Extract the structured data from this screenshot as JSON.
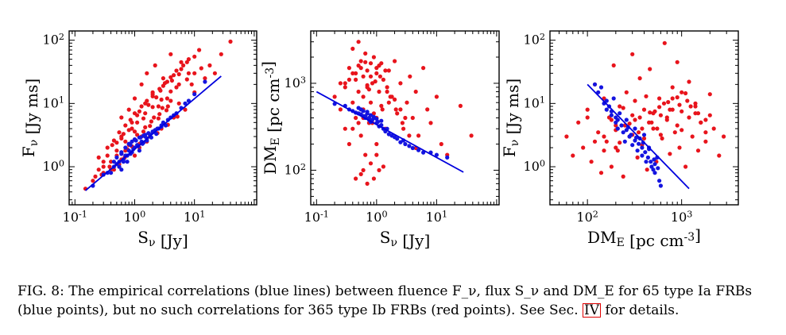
{
  "chart_data": [
    {
      "type": "scatter",
      "xlabel": "S_ν [Jy]",
      "ylabel": "F_ν [Jy ms]",
      "xscale": "log",
      "yscale": "log",
      "xlim": [
        0.08,
        110
      ],
      "ylim": [
        0.25,
        140
      ],
      "x_ticks": [
        "10^-1",
        "10^0",
        "10^1"
      ],
      "y_ticks": [
        "10^0",
        "10^1",
        "10^2"
      ],
      "series": [
        {
          "name": "type Ib",
          "color": "#e8141c",
          "x": [
            0.15,
            0.22,
            0.25,
            0.3,
            0.3,
            0.35,
            0.4,
            0.42,
            0.5,
            0.55,
            0.6,
            0.6,
            0.7,
            0.8,
            0.9,
            1.0,
            1.1,
            1.2,
            1.3,
            1.5,
            1.6,
            1.8,
            2.0,
            2.2,
            2.5,
            2.8,
            3.0,
            3.5,
            4.0,
            4.5,
            5.0,
            5.5,
            6.0,
            7.0,
            8.0,
            9.0,
            10.0,
            12.0,
            15.0,
            18.0,
            22.0,
            28.0,
            40.0,
            0.25,
            0.35,
            0.45,
            0.55,
            0.7,
            0.85,
            1.0,
            1.3,
            1.6,
            2.0,
            2.6,
            3.2,
            4.0,
            5.0,
            6.5,
            8.0,
            0.3,
            0.5,
            0.6,
            0.8,
            1.1,
            1.5,
            2.0,
            2.7,
            3.5,
            4.5,
            6.0,
            7.5,
            10.0,
            0.4,
            0.5,
            0.65,
            0.9,
            1.2,
            1.7,
            2.3,
            3.0,
            4.2,
            5.5,
            0.45,
            0.6,
            0.8,
            1.1,
            1.5,
            2.1,
            2.9,
            4.0,
            0.55,
            0.75,
            1.0,
            1.4,
            1.9,
            2.6,
            3.6,
            0.6,
            0.9,
            1.3,
            1.8,
            2.5,
            3.4,
            1.0,
            1.6,
            2.4,
            3.6,
            5.2,
            0.7,
            1.0,
            1.4,
            2.0,
            2.8,
            4.0,
            5.5,
            7.5,
            10.0,
            13.0,
            0.2,
            0.28,
            0.38,
            0.5,
            0.68,
            0.9,
            1.2
          ],
          "y": [
            0.45,
            0.7,
            0.9,
            0.8,
            1.2,
            1.5,
            0.9,
            2.2,
            1.8,
            1.0,
            3.0,
            6.0,
            2.5,
            8.0,
            4.0,
            12.0,
            5.0,
            2.0,
            20.0,
            7.0,
            30.0,
            3.0,
            15.0,
            40.0,
            9.0,
            4.0,
            25.0,
            12.0,
            60.0,
            6.0,
            18.0,
            10.0,
            45.0,
            8.0,
            30.0,
            20.0,
            15.0,
            70.0,
            25.0,
            40.0,
            30.0,
            60.0,
            95.0,
            1.4,
            2.0,
            2.6,
            3.5,
            4.5,
            5.5,
            7.0,
            9.0,
            11.0,
            14.0,
            17.0,
            21.0,
            26.0,
            33.0,
            40.0,
            50.0,
            1.0,
            1.5,
            2.8,
            3.8,
            6.5,
            10.0,
            13.0,
            16.0,
            22.0,
            28.0,
            35.0,
            45.0,
            55.0,
            1.2,
            2.4,
            3.3,
            5.0,
            7.5,
            9.5,
            12.5,
            19.0,
            23.0,
            29.0,
            0.9,
            1.6,
            2.2,
            3.2,
            4.2,
            6.0,
            8.5,
            11.0,
            1.1,
            1.9,
            2.7,
            3.6,
            5.2,
            6.8,
            9.0,
            1.3,
            2.1,
            3.0,
            4.4,
            5.8,
            7.8,
            1.5,
            2.5,
            3.4,
            4.6,
            6.2,
            1.8,
            3.6,
            5.8,
            8.8,
            11.5,
            15.5,
            20.0,
            24.0,
            30.0,
            36.0,
            0.6,
            0.75,
            1.0,
            1.1,
            1.4,
            1.7,
            2.3
          ]
        },
        {
          "name": "type Ia",
          "color": "#1414e0",
          "x": [
            0.2,
            0.3,
            0.35,
            0.4,
            0.45,
            0.5,
            0.55,
            0.6,
            0.65,
            0.7,
            0.75,
            0.8,
            0.85,
            0.9,
            1.0,
            1.1,
            1.2,
            1.3,
            1.4,
            1.5,
            1.6,
            1.8,
            2.0,
            2.2,
            2.5,
            2.8,
            3.0,
            3.3,
            3.6,
            4.0,
            4.5,
            5.0,
            6.0,
            7.0,
            8.0,
            10.0,
            15.0,
            0.5,
            0.6,
            0.7,
            0.8,
            0.9,
            1.0,
            1.2,
            1.4,
            1.7,
            2.0,
            2.4,
            2.8,
            0.55,
            0.65,
            0.75,
            0.95,
            1.15,
            1.35,
            1.6,
            1.9,
            2.3,
            0.45,
            0.6,
            0.85,
            1.05,
            1.25,
            1.5
          ],
          "y": [
            0.5,
            0.75,
            0.8,
            0.8,
            1.0,
            1.1,
            1.2,
            0.9,
            1.3,
            1.5,
            1.2,
            1.8,
            1.6,
            1.7,
            2.0,
            2.2,
            1.8,
            2.5,
            2.4,
            3.0,
            2.8,
            3.2,
            3.5,
            3.8,
            4.0,
            4.5,
            5.0,
            4.5,
            5.5,
            6.0,
            6.5,
            7.0,
            8.5,
            10.0,
            11.0,
            14.0,
            22.0,
            1.4,
            1.6,
            2.0,
            2.3,
            2.5,
            2.7,
            2.9,
            3.1,
            3.4,
            3.6,
            4.0,
            4.3,
            1.0,
            1.2,
            1.5,
            1.9,
            2.1,
            2.3,
            2.6,
            2.9,
            3.3,
            1.2,
            1.7,
            2.2,
            2.6,
            2.9,
            3.2
          ]
        }
      ],
      "fit_line": {
        "color": "#0000dd",
        "x": [
          0.15,
          28
        ],
        "y": [
          0.42,
          27
        ]
      }
    },
    {
      "type": "scatter",
      "xlabel": "S_ν [Jy]",
      "ylabel": "DM_E [pc cm^-3]",
      "xscale": "log",
      "yscale": "log",
      "xlim": [
        0.08,
        110
      ],
      "ylim": [
        40,
        4000
      ],
      "x_ticks": [
        "10^-1",
        "10^0",
        "10^1"
      ],
      "y_ticks": [
        "10^2",
        "10^3"
      ],
      "series": [
        {
          "name": "type Ib",
          "color": "#e8141c",
          "x": [
            0.2,
            0.25,
            0.3,
            0.3,
            0.35,
            0.35,
            0.4,
            0.4,
            0.45,
            0.45,
            0.5,
            0.5,
            0.55,
            0.55,
            0.6,
            0.6,
            0.65,
            0.65,
            0.7,
            0.7,
            0.75,
            0.8,
            0.8,
            0.85,
            0.9,
            0.9,
            1.0,
            1.0,
            1.1,
            1.1,
            1.2,
            1.3,
            1.4,
            1.5,
            1.6,
            1.8,
            2.0,
            2.2,
            2.5,
            2.8,
            3.2,
            3.6,
            4.0,
            4.5,
            5.0,
            6.0,
            7.0,
            8.0,
            10.0,
            12.0,
            15.0,
            25.0,
            38.0,
            0.3,
            0.4,
            0.5,
            0.6,
            0.7,
            0.8,
            1.0,
            1.2,
            1.5,
            2.0,
            2.5,
            3.0,
            0.25,
            0.35,
            0.45,
            0.55,
            0.65,
            0.75,
            0.95,
            1.15,
            1.4,
            1.7,
            2.1,
            2.7,
            3.5,
            4.5,
            0.4,
            0.5,
            0.6,
            0.7,
            0.85,
            1.0,
            1.25,
            1.6,
            0.6,
            0.8,
            1.0,
            1.3,
            0.45,
            0.55,
            0.7,
            0.9,
            1.1
          ],
          "y": [
            700,
            500,
            900,
            300,
            1500,
            200,
            2500,
            600,
            1100,
            400,
            3000,
            800,
            1800,
            250,
            1200,
            500,
            2200,
            150,
            900,
            1400,
            350,
            1700,
            600,
            1000,
            450,
            2000,
            1300,
            200,
            800,
            1600,
            550,
            1100,
            300,
            900,
            1400,
            700,
            1800,
            450,
            1000,
            300,
            600,
            1200,
            400,
            800,
            250,
            1500,
            500,
            350,
            700,
            200,
            150,
            550,
            250,
            1000,
            1300,
            1600,
            700,
            950,
            1200,
            1500,
            1700,
            800,
            650,
            500,
            400,
            1000,
            1100,
            1300,
            1500,
            1750,
            850,
            1050,
            1200,
            1400,
            700,
            500,
            350,
            250,
            180,
            300,
            350,
            400,
            450,
            350,
            400,
            500,
            600,
            100,
            120,
            150,
            110,
            80,
            90,
            70,
            80,
            100
          ]
        },
        {
          "name": "type Ia",
          "color": "#1414e0",
          "x": [
            0.2,
            0.3,
            0.35,
            0.4,
            0.45,
            0.5,
            0.55,
            0.6,
            0.65,
            0.7,
            0.75,
            0.8,
            0.9,
            1.0,
            1.1,
            1.2,
            1.3,
            1.4,
            1.5,
            1.6,
            1.8,
            2.0,
            2.2,
            2.5,
            2.8,
            3.0,
            3.5,
            4.0,
            5.0,
            6.0,
            8.0,
            10.0,
            15.0,
            0.5,
            0.6,
            0.7,
            0.8,
            0.9,
            1.0,
            1.2,
            0.55,
            0.65,
            0.75,
            0.85,
            1.05
          ],
          "y": [
            580,
            550,
            500,
            480,
            460,
            450,
            500,
            420,
            400,
            450,
            380,
            360,
            400,
            350,
            320,
            330,
            300,
            280,
            300,
            260,
            250,
            240,
            230,
            210,
            220,
            200,
            190,
            180,
            170,
            160,
            160,
            150,
            140,
            520,
            480,
            470,
            430,
            410,
            390,
            370,
            440,
            420,
            400,
            380,
            360
          ]
        }
      ],
      "fit_line": {
        "color": "#0000dd",
        "x": [
          0.1,
          28
        ],
        "y": [
          800,
          95
        ]
      }
    },
    {
      "type": "scatter",
      "xlabel": "DM_E [pc cm^-3]",
      "ylabel": "F_ν [Jy ms]",
      "xscale": "log",
      "yscale": "log",
      "xlim": [
        40,
        4000
      ],
      "ylim": [
        0.25,
        140
      ],
      "x_ticks": [
        "10^2",
        "10^3"
      ],
      "y_ticks": [
        "10^0",
        "10^1",
        "10^2"
      ],
      "series": [
        {
          "name": "type Ib",
          "color": "#e8141c",
          "x": [
            60,
            70,
            80,
            90,
            100,
            110,
            120,
            130,
            140,
            150,
            160,
            170,
            180,
            190,
            200,
            210,
            220,
            240,
            260,
            280,
            300,
            320,
            340,
            360,
            380,
            400,
            430,
            460,
            500,
            540,
            580,
            620,
            660,
            700,
            750,
            800,
            850,
            900,
            950,
            1000,
            1100,
            1200,
            1300,
            1400,
            1500,
            1600,
            1800,
            2000,
            2200,
            2500,
            2800,
            100,
            150,
            200,
            250,
            300,
            350,
            400,
            450,
            500,
            550,
            600,
            700,
            800,
            900,
            1000,
            1200,
            1400,
            1600,
            1800,
            2000,
            120,
            180,
            240,
            320,
            420,
            520,
            650,
            800,
            1000,
            1250,
            1500,
            1800,
            150,
            220,
            300,
            380,
            480,
            600,
            750,
            950,
            1150,
            1400,
            200,
            280,
            360,
            460,
            580,
            720,
            900,
            1100
          ],
          "y": [
            3.0,
            1.5,
            5.0,
            2.0,
            8.0,
            1.2,
            20.0,
            3.5,
            0.8,
            12.0,
            2.5,
            6.0,
            1.0,
            40.0,
            4.5,
            1.8,
            9.0,
            0.7,
            15.0,
            3.0,
            60.0,
            5.5,
            1.4,
            25.0,
            2.2,
            8.0,
            0.9,
            35.0,
            4.0,
            1.2,
            12.0,
            2.8,
            90.0,
            6.0,
            1.6,
            18.0,
            3.5,
            45.0,
            2.0,
            7.5,
            1.0,
            22.0,
            3.0,
            10.0,
            1.8,
            5.0,
            2.5,
            14.0,
            4.0,
            1.5,
            3.0,
            6.0,
            3.0,
            2.0,
            4.5,
            6.5,
            3.5,
            2.8,
            5.0,
            7.0,
            4.0,
            3.2,
            5.5,
            8.0,
            4.5,
            3.8,
            6.0,
            9.0,
            5.0,
            3.5,
            6.5,
            2.5,
            5.5,
            8.5,
            11.0,
            13.0,
            7.5,
            10.0,
            12.0,
            15.0,
            9.0,
            7.0,
            5.5,
            1.8,
            2.4,
            3.2,
            4.0,
            5.0,
            6.5,
            8.0,
            9.5,
            11.0,
            7.0,
            3.8,
            4.8,
            6.0,
            7.2,
            8.8,
            10.5,
            12.5,
            14.5
          ]
        },
        {
          "name": "type Ia",
          "color": "#1414e0",
          "x": [
            120,
            130,
            150,
            160,
            180,
            190,
            200,
            210,
            220,
            240,
            250,
            260,
            280,
            300,
            320,
            340,
            360,
            380,
            400,
            420,
            450,
            480,
            500,
            520,
            550,
            580,
            600,
            140,
            170,
            200,
            230,
            260,
            290,
            320,
            350,
            380,
            410,
            440,
            470,
            520,
            560,
            160,
            210,
            270,
            330,
            390,
            450,
            510,
            180
          ],
          "y": [
            20.0,
            15.0,
            10.0,
            8.0,
            6.5,
            12.0,
            5.0,
            4.0,
            7.0,
            3.5,
            2.5,
            5.5,
            3.0,
            2.2,
            4.0,
            1.8,
            2.8,
            1.5,
            3.2,
            1.2,
            2.0,
            1.0,
            0.9,
            0.8,
            1.4,
            0.6,
            0.5,
            18.0,
            9.0,
            6.0,
            4.5,
            3.8,
            3.2,
            2.6,
            2.3,
            2.0,
            1.7,
            1.4,
            1.2,
            1.1,
            0.95,
            11.0,
            5.5,
            4.2,
            2.9,
            2.4,
            1.9,
            1.3,
            7.5
          ]
        }
      ],
      "fit_line": {
        "color": "#0000dd",
        "x": [
          100,
          1200
        ],
        "y": [
          20,
          0.45
        ]
      }
    }
  ],
  "caption": {
    "text_before_ref": "FIG. 8: The empirical correlations (blue lines) between fluence F_ν, flux S_ν and DM_E for 65 type Ia FRBs (blue points), but no such correlations for 365 type Ib FRBs (red points). See Sec.",
    "ref": "IV",
    "text_after_ref": "for details."
  }
}
